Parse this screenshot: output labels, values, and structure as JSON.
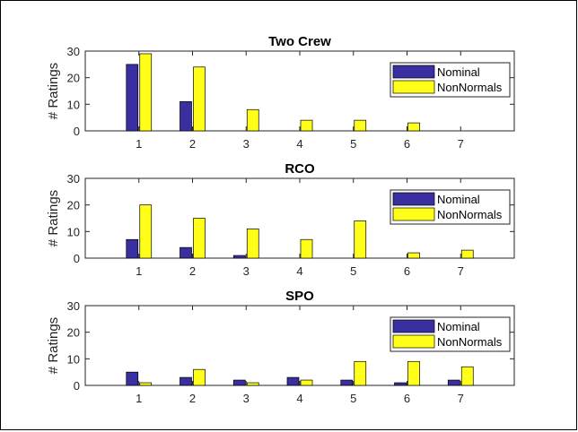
{
  "chart_data": [
    {
      "type": "bar",
      "title": "Two Crew",
      "ylabel": "# Ratings",
      "xlabel": "",
      "categories": [
        "1",
        "2",
        "3",
        "4",
        "5",
        "6",
        "7"
      ],
      "ylim": [
        0,
        30
      ],
      "yticks": [
        0,
        10,
        20,
        30
      ],
      "legend_position": "top-right",
      "series": [
        {
          "name": "Nominal",
          "color": "#3a2fa0",
          "values": [
            25,
            11,
            0,
            0,
            0,
            0,
            0
          ]
        },
        {
          "name": "NonNormals",
          "color": "#ffff19",
          "values": [
            29,
            24,
            8,
            4,
            4,
            3,
            0
          ]
        }
      ]
    },
    {
      "type": "bar",
      "title": "RCO",
      "ylabel": "# Ratings",
      "xlabel": "",
      "categories": [
        "1",
        "2",
        "3",
        "4",
        "5",
        "6",
        "7"
      ],
      "ylim": [
        0,
        30
      ],
      "yticks": [
        0,
        10,
        20,
        30
      ],
      "legend_position": "top-right",
      "series": [
        {
          "name": "Nominal",
          "color": "#3a2fa0",
          "values": [
            7,
            4,
            1,
            0,
            0,
            0,
            0
          ]
        },
        {
          "name": "NonNormals",
          "color": "#ffff19",
          "values": [
            20,
            15,
            11,
            7,
            14,
            2,
            3
          ]
        }
      ]
    },
    {
      "type": "bar",
      "title": "SPO",
      "ylabel": "# Ratings",
      "xlabel": "",
      "categories": [
        "1",
        "2",
        "3",
        "4",
        "5",
        "6",
        "7"
      ],
      "ylim": [
        0,
        30
      ],
      "yticks": [
        0,
        10,
        20,
        30
      ],
      "legend_position": "top-right",
      "series": [
        {
          "name": "Nominal",
          "color": "#3a2fa0",
          "values": [
            5,
            3,
            2,
            3,
            2,
            1,
            2
          ]
        },
        {
          "name": "NonNormals",
          "color": "#ffff19",
          "values": [
            1,
            6,
            1,
            2,
            9,
            9,
            7
          ]
        }
      ]
    }
  ]
}
